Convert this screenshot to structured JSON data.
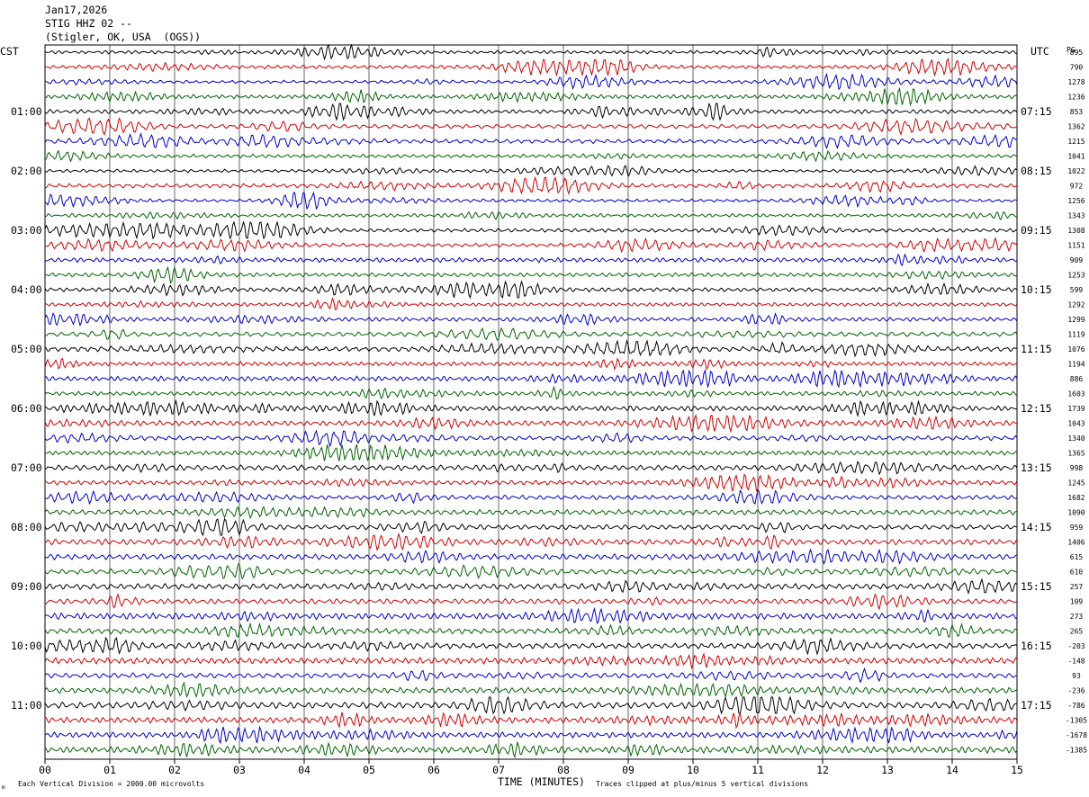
{
  "header": {
    "date": "Jan17,2026",
    "station": "STIG HHZ 02 --",
    "location": "(Stigler, OK, USA  (OGS))"
  },
  "left_tz": "CST",
  "right_tz": "UTC",
  "right_col_label": "PG",
  "footer": {
    "scale_note": "Each Vertical Division = 2000.00 microvolts",
    "clip_note": "Traces clipped at plus/minus 5 vertical divisions",
    "corner_mark": "m"
  },
  "chart_data": {
    "type": "seismogram",
    "xlabel": "TIME (MINUTES)",
    "xlim": [
      0,
      15
    ],
    "x_ticks": [
      "00",
      "01",
      "02",
      "03",
      "04",
      "05",
      "06",
      "07",
      "08",
      "09",
      "10",
      "11",
      "12",
      "13",
      "14",
      "15"
    ],
    "rows_per_hour": 4,
    "trace_colors": [
      "#000000",
      "#d00000",
      "#0000c8",
      "#006400"
    ],
    "left_time_labels": [
      "01:00",
      "02:00",
      "03:00",
      "04:00",
      "05:00",
      "06:00",
      "07:00",
      "08:00",
      "09:00",
      "10:00",
      "11:00"
    ],
    "right_time_labels": [
      "07:15",
      "08:15",
      "09:15",
      "10:15",
      "11:15",
      "12:15",
      "13:15",
      "14:15",
      "15:15",
      "16:15",
      "17:15"
    ],
    "row_values": [
      "895",
      "790",
      "1278",
      "1236",
      "853",
      "1362",
      "1215",
      "1041",
      "1022",
      "972",
      "1256",
      "1343",
      "1308",
      "1151",
      "909",
      "1253",
      "599",
      "1292",
      "1299",
      "1119",
      "1076",
      "1194",
      "886",
      "1603",
      "1739",
      "1043",
      "1340",
      "1365",
      "998",
      "1245",
      "1682",
      "1090",
      "959",
      "1406",
      "615",
      "610",
      "257",
      "109",
      "273",
      "265",
      "-203",
      "-148",
      "93",
      "-236",
      "-786",
      "-1305",
      "-1678",
      "-1385"
    ]
  }
}
